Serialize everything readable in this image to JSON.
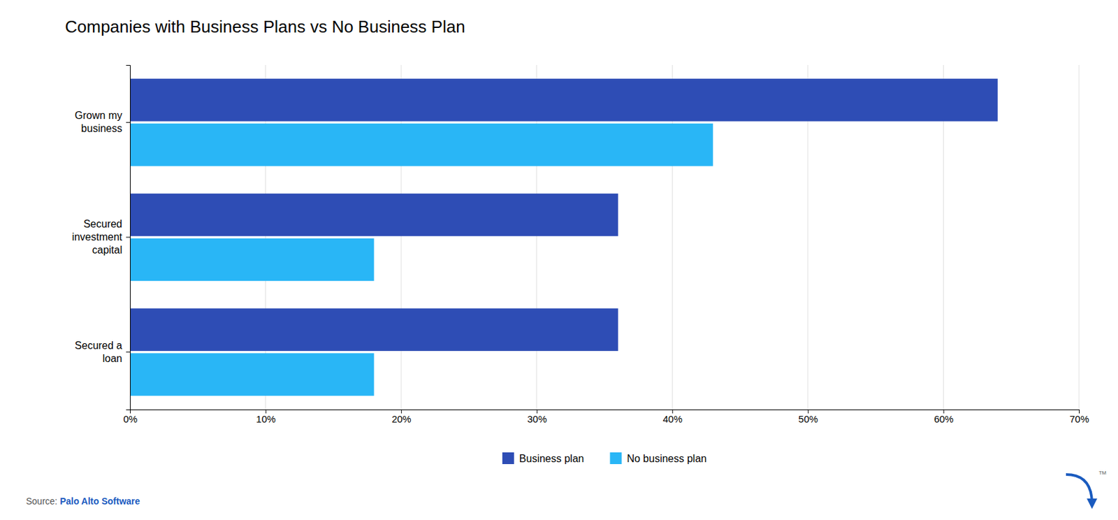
{
  "chart_data": {
    "type": "bar",
    "orientation": "horizontal",
    "title": "Companies with Business Plans vs No Business Plan",
    "categories": [
      "Grown my\nbusiness",
      "Secured\ninvestment\ncapital",
      "Secured a\nloan"
    ],
    "series": [
      {
        "name": "Business plan",
        "color": "#2e4db5",
        "values": [
          64,
          36,
          36
        ]
      },
      {
        "name": "No business plan",
        "color": "#29b6f6",
        "values": [
          43,
          18,
          18
        ]
      }
    ],
    "xlim": [
      0,
      70
    ],
    "xticks": [
      {
        "value": 0,
        "label": "0%"
      },
      {
        "value": 10,
        "label": "10%"
      },
      {
        "value": 20,
        "label": "20%"
      },
      {
        "value": 30,
        "label": "30%"
      },
      {
        "value": 40,
        "label": "40%"
      },
      {
        "value": 50,
        "label": "50%"
      },
      {
        "value": 60,
        "label": "60%"
      },
      {
        "value": 70,
        "label": "70%"
      }
    ],
    "grid": true,
    "legend": "bottom",
    "annotations": [
      "Source: ",
      "Palo Alto Software",
      "TM"
    ]
  }
}
